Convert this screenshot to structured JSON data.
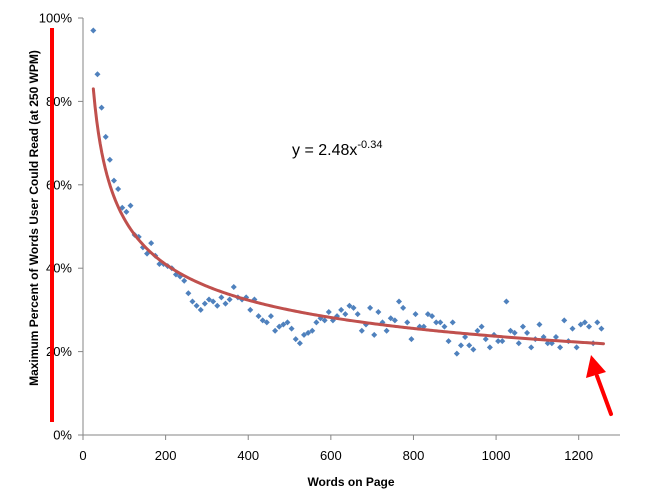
{
  "chart_data": {
    "type": "scatter",
    "title": "",
    "xlabel": "Words on Page",
    "ylabel": "Maximum Percent of Words User Could Read (at 250 WPM)",
    "xlim": [
      0,
      1300
    ],
    "ylim": [
      0,
      100
    ],
    "x_ticks": [
      0,
      200,
      400,
      600,
      800,
      1000,
      1200
    ],
    "y_ticks": [
      0,
      20,
      40,
      60,
      80,
      100
    ],
    "x_tick_labels": [
      "0",
      "200",
      "400",
      "600",
      "800",
      "1000",
      "1200"
    ],
    "y_tick_labels": [
      "0%",
      "20%",
      "40%",
      "60%",
      "80%",
      "100%"
    ],
    "grid": false,
    "legend": "none",
    "equation": {
      "base": "y = 2.48x",
      "exponent": "-0.34"
    },
    "trendline": {
      "type": "power",
      "a": 2.48,
      "b": -0.34,
      "x_range": [
        25,
        1260
      ]
    },
    "marker_color": "#4F81BD",
    "trendline_color": "#C0504D",
    "annotation_color": "#FF0000",
    "x": [
      25,
      35,
      45,
      55,
      65,
      75,
      85,
      95,
      105,
      115,
      125,
      135,
      145,
      155,
      165,
      175,
      185,
      195,
      205,
      215,
      225,
      235,
      245,
      255,
      265,
      275,
      285,
      295,
      305,
      315,
      325,
      335,
      345,
      355,
      365,
      375,
      385,
      395,
      405,
      415,
      425,
      435,
      445,
      455,
      465,
      475,
      485,
      495,
      505,
      515,
      525,
      535,
      545,
      555,
      565,
      575,
      585,
      595,
      605,
      615,
      625,
      635,
      645,
      655,
      665,
      675,
      685,
      695,
      705,
      715,
      725,
      735,
      745,
      755,
      765,
      775,
      785,
      795,
      805,
      815,
      825,
      835,
      845,
      855,
      865,
      875,
      885,
      895,
      905,
      915,
      925,
      935,
      945,
      955,
      965,
      975,
      985,
      995,
      1005,
      1015,
      1025,
      1035,
      1045,
      1055,
      1065,
      1075,
      1085,
      1095,
      1105,
      1115,
      1125,
      1135,
      1145,
      1155,
      1165,
      1175,
      1185,
      1195,
      1205,
      1215,
      1225,
      1235,
      1245,
      1255
    ],
    "y": [
      97,
      86.5,
      78.5,
      71.5,
      66,
      61,
      59,
      54.5,
      53.5,
      55,
      48,
      47.5,
      45,
      43.5,
      46,
      43,
      41,
      41,
      40.5,
      40,
      38.5,
      38,
      37,
      34,
      32,
      31,
      30,
      31.5,
      32.5,
      32,
      31,
      33,
      31.5,
      32.5,
      35.5,
      33,
      32.5,
      33,
      30,
      32.5,
      28.5,
      27.5,
      27,
      28.5,
      25,
      26,
      26.5,
      27,
      25.5,
      23,
      22,
      24,
      24.5,
      25,
      27,
      28,
      27.5,
      29.5,
      27.5,
      28.5,
      30,
      29,
      31,
      30.5,
      29,
      25,
      26.5,
      30.5,
      24,
      29.5,
      27,
      25,
      28,
      27.5,
      32,
      30.5,
      27,
      23,
      29,
      26,
      26,
      29,
      28.5,
      27,
      27,
      26,
      22.5,
      27,
      19.5,
      21.5,
      23.5,
      21.5,
      20.5,
      25,
      26,
      23,
      21,
      24,
      22.5,
      22.5,
      32,
      25,
      24.5,
      22,
      26,
      24.5,
      21,
      23,
      26.5,
      23.5,
      22,
      22,
      23.5,
      21,
      27.5,
      22.5,
      25.5,
      21,
      26.5,
      27,
      26,
      22,
      27,
      25.5
    ]
  }
}
